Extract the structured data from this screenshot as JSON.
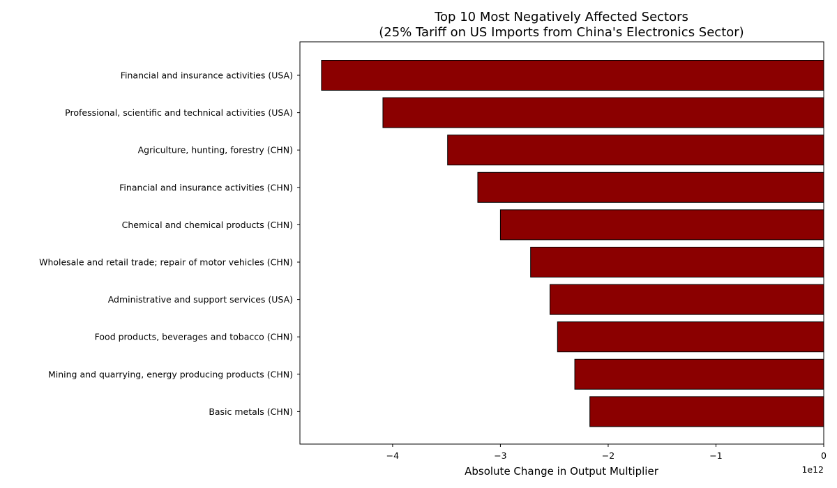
{
  "chart_data": {
    "type": "bar",
    "orientation": "horizontal",
    "title_line1": "Top 10 Most Negatively Affected Sectors",
    "title_line2": "(25% Tariff on US Imports from China's Electronics Sector)",
    "xlabel": "Absolute Change in Output Multiplier",
    "ylabel": "",
    "x_offset_label": "1e12",
    "xlim": [
      -4.86,
      0
    ],
    "xticks": [
      -4,
      -3,
      -2,
      -1,
      0
    ],
    "xtick_labels": [
      "−4",
      "−3",
      "−2",
      "−1",
      "0"
    ],
    "grid": false,
    "bar_color": "#8b0000",
    "bar_edge_color": "#000000",
    "categories": [
      "Financial and insurance activities (USA)",
      "Professional, scientific and technical activities (USA)",
      "Agriculture, hunting, forestry (CHN)",
      "Financial and insurance activities (CHN)",
      "Chemical and chemical products (CHN)",
      "Wholesale and retail trade; repair of motor vehicles (CHN)",
      "Administrative and support services (USA)",
      "Food products, beverages and tobacco (CHN)",
      "Mining and quarrying, energy producing products (CHN)",
      "Basic metals (CHN)"
    ],
    "values": [
      -4.66,
      -4.09,
      -3.49,
      -3.21,
      -3.0,
      -2.72,
      -2.54,
      -2.47,
      -2.31,
      -2.17
    ]
  }
}
